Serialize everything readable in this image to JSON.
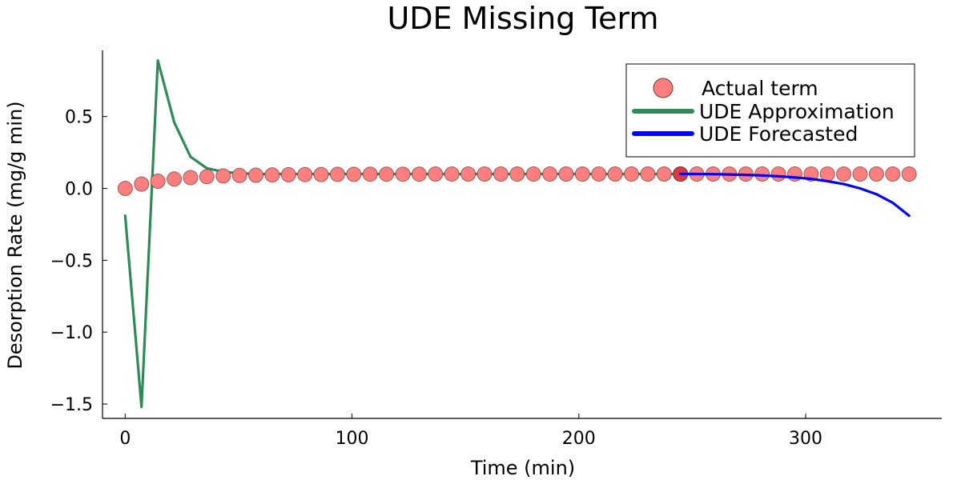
{
  "chart_data": {
    "type": "line",
    "title": "UDE Missing Term",
    "xlabel": "Time (min)",
    "ylabel": "Desorption Rate (mg/g min)",
    "xlim": [
      -10,
      360
    ],
    "ylim": [
      -1.6,
      0.96
    ],
    "x_ticks": [
      0,
      100,
      200,
      300
    ],
    "x_tick_labels": [
      "0",
      "100",
      "200",
      "300"
    ],
    "y_ticks": [
      0.5,
      0.0,
      -0.5,
      -1.0,
      -1.5
    ],
    "y_tick_labels": [
      "0.5",
      "0.0",
      "−0.5",
      "−1.0",
      "−1.5"
    ],
    "grid": false,
    "legend_position": "top-right",
    "colors": {
      "actual_fill": "#ff7f7f",
      "actual_edge": "#6b3a3a",
      "approx": "#2e8b57",
      "forecast": "#0000ff"
    },
    "series": [
      {
        "name": "Actual term",
        "kind": "scatter",
        "x": [
          0,
          7.2,
          14.4,
          21.6,
          28.8,
          36,
          43.2,
          50.4,
          57.6,
          64.8,
          72,
          79.2,
          86.4,
          93.6,
          100.8,
          108,
          115.2,
          122.4,
          129.6,
          136.8,
          144,
          151.2,
          158.4,
          165.6,
          172.8,
          180,
          187.2,
          194.4,
          201.6,
          208.8,
          216,
          223.2,
          230.4,
          237.6,
          244.8,
          252,
          259.2,
          266.4,
          273.6,
          280.8,
          288,
          295.2,
          302.4,
          309.6,
          316.8,
          324,
          331.2,
          338.4,
          345.6
        ],
        "y": [
          0.0,
          0.03,
          0.05,
          0.065,
          0.075,
          0.082,
          0.087,
          0.09,
          0.092,
          0.094,
          0.095,
          0.096,
          0.097,
          0.098,
          0.098,
          0.099,
          0.099,
          0.099,
          0.099,
          0.1,
          0.1,
          0.1,
          0.1,
          0.1,
          0.1,
          0.1,
          0.1,
          0.1,
          0.1,
          0.1,
          0.1,
          0.1,
          0.1,
          0.1,
          0.1,
          0.1,
          0.1,
          0.1,
          0.1,
          0.1,
          0.1,
          0.1,
          0.1,
          0.1,
          0.1,
          0.1,
          0.1,
          0.1,
          0.1
        ]
      },
      {
        "name": "UDE Approximation",
        "kind": "line",
        "x": [
          0,
          7.2,
          14.4,
          21.6,
          28.8,
          36,
          43.2,
          50.4,
          57.6,
          64.8,
          72,
          79.2,
          86.4,
          93.6,
          100.8,
          108,
          115.2,
          122.4,
          129.6,
          136.8,
          144,
          151.2,
          158.4,
          165.6,
          172.8,
          180,
          187.2,
          194.4,
          201.6,
          208.8,
          216,
          223.2,
          230.4,
          237.6,
          244.8
        ],
        "y": [
          -0.19,
          -1.52,
          0.89,
          0.46,
          0.22,
          0.14,
          0.115,
          0.105,
          0.1,
          0.1,
          0.1,
          0.1,
          0.1,
          0.1,
          0.1,
          0.1,
          0.1,
          0.1,
          0.1,
          0.1,
          0.1,
          0.1,
          0.1,
          0.1,
          0.1,
          0.1,
          0.1,
          0.1,
          0.1,
          0.1,
          0.1,
          0.1,
          0.1,
          0.1,
          0.1
        ]
      },
      {
        "name": "UDE Forecasted",
        "kind": "line",
        "x": [
          244.8,
          252,
          259.2,
          266.4,
          273.6,
          280.8,
          288,
          295.2,
          302.4,
          309.6,
          316.8,
          324,
          331.2,
          338.4,
          345.6
        ],
        "y": [
          0.1,
          0.1,
          0.099,
          0.097,
          0.094,
          0.09,
          0.084,
          0.076,
          0.066,
          0.05,
          0.03,
          0.0,
          -0.04,
          -0.1,
          -0.19
        ]
      }
    ]
  }
}
